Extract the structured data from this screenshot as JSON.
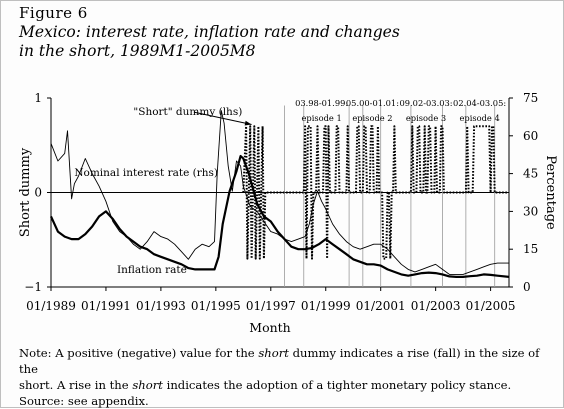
{
  "figure": {
    "label": "Figure 6",
    "title_line1": "Mexico: interest rate, inflation rate and changes",
    "title_line2": "in the short, 1989M1-2005M8"
  },
  "note": {
    "line1_a": "Note: A positive (negative) value for the ",
    "line1_em": "short",
    "line1_b": " dummy indicates a rise (fall) in the size of the",
    "line2_a": "short. A rise in the ",
    "line2_em": "short",
    "line2_b": " indicates the adoption of a tighter monetary policy stance.",
    "line3": "Source: see appendix."
  },
  "chart_data": {
    "type": "line",
    "title": "",
    "xlabel": "Month",
    "ylabel_left": "Short dummy",
    "ylabel_right": "Percentage",
    "x_range": [
      1989.0,
      2005.67
    ],
    "ylim_left": [
      -1,
      1
    ],
    "ylim_right": [
      0,
      75
    ],
    "x_ticks": [
      {
        "x": 1989.0,
        "label": "01/1989"
      },
      {
        "x": 1991.0,
        "label": "01/1991"
      },
      {
        "x": 1993.0,
        "label": "01/1993"
      },
      {
        "x": 1995.0,
        "label": "01/1995"
      },
      {
        "x": 1997.0,
        "label": "01/1997"
      },
      {
        "x": 1999.0,
        "label": "01/1999"
      },
      {
        "x": 2001.0,
        "label": "01/2001"
      },
      {
        "x": 2003.0,
        "label": "01/2003"
      },
      {
        "x": 2005.0,
        "label": "01/2005"
      }
    ],
    "y_ticks_left": [
      {
        "y": 1,
        "label": "1"
      },
      {
        "y": 0,
        "label": "0"
      },
      {
        "y": -1,
        "label": "−1"
      }
    ],
    "y_ticks_right": [
      {
        "y": 75,
        "label": "75"
      },
      {
        "y": 60,
        "label": "60"
      },
      {
        "y": 45,
        "label": "45"
      },
      {
        "y": 30,
        "label": "30"
      },
      {
        "y": 15,
        "label": "15"
      },
      {
        "y": 0,
        "label": "0"
      }
    ],
    "series": [
      {
        "name": "Nominal interest rate (rhs)",
        "label": "Nominal interest rate (rhs)",
        "axis": "right",
        "style": "thin",
        "color": "#000000",
        "points": [
          [
            1989.0,
            57
          ],
          [
            1989.25,
            50
          ],
          [
            1989.5,
            53
          ],
          [
            1989.6,
            62
          ],
          [
            1989.75,
            35
          ],
          [
            1989.85,
            41
          ],
          [
            1990.0,
            44
          ],
          [
            1990.25,
            51
          ],
          [
            1990.5,
            45
          ],
          [
            1990.75,
            40
          ],
          [
            1991.0,
            34
          ],
          [
            1991.25,
            26
          ],
          [
            1991.5,
            22
          ],
          [
            1991.75,
            20
          ],
          [
            1992.0,
            17
          ],
          [
            1992.25,
            15
          ],
          [
            1992.5,
            18
          ],
          [
            1992.75,
            22
          ],
          [
            1993.0,
            20
          ],
          [
            1993.25,
            19
          ],
          [
            1993.5,
            17
          ],
          [
            1993.75,
            14
          ],
          [
            1994.0,
            11
          ],
          [
            1994.25,
            15
          ],
          [
            1994.5,
            17
          ],
          [
            1994.75,
            16
          ],
          [
            1994.95,
            18
          ],
          [
            1995.05,
            45
          ],
          [
            1995.2,
            70
          ],
          [
            1995.3,
            65
          ],
          [
            1995.45,
            48
          ],
          [
            1995.6,
            38
          ],
          [
            1995.75,
            50
          ],
          [
            1995.9,
            48
          ],
          [
            1996.0,
            40
          ],
          [
            1996.25,
            32
          ],
          [
            1996.5,
            30
          ],
          [
            1996.75,
            26
          ],
          [
            1997.0,
            22
          ],
          [
            1997.25,
            21
          ],
          [
            1997.5,
            19
          ],
          [
            1997.75,
            18
          ],
          [
            1998.0,
            19
          ],
          [
            1998.25,
            20
          ],
          [
            1998.4,
            25
          ],
          [
            1998.55,
            33
          ],
          [
            1998.7,
            38
          ],
          [
            1998.85,
            34
          ],
          [
            1999.0,
            31
          ],
          [
            1999.25,
            25
          ],
          [
            1999.5,
            21
          ],
          [
            1999.75,
            18
          ],
          [
            2000.0,
            16
          ],
          [
            2000.25,
            15
          ],
          [
            2000.5,
            16
          ],
          [
            2000.75,
            17
          ],
          [
            2001.0,
            17
          ],
          [
            2001.25,
            15
          ],
          [
            2001.5,
            12
          ],
          [
            2001.75,
            9
          ],
          [
            2002.0,
            7
          ],
          [
            2002.25,
            6
          ],
          [
            2002.5,
            7
          ],
          [
            2002.75,
            8
          ],
          [
            2003.0,
            9
          ],
          [
            2003.25,
            7
          ],
          [
            2003.5,
            5
          ],
          [
            2003.75,
            5
          ],
          [
            2004.0,
            5
          ],
          [
            2004.25,
            6
          ],
          [
            2004.5,
            7
          ],
          [
            2004.75,
            8
          ],
          [
            2005.0,
            9
          ],
          [
            2005.25,
            9.5
          ],
          [
            2005.67,
            9.5
          ]
        ]
      },
      {
        "name": "Inflation rate",
        "label": "Inflation rate",
        "axis": "right",
        "style": "thick",
        "color": "#000000",
        "points": [
          [
            1989.0,
            28
          ],
          [
            1989.25,
            22
          ],
          [
            1989.5,
            20
          ],
          [
            1989.75,
            19
          ],
          [
            1990.0,
            19
          ],
          [
            1990.25,
            21
          ],
          [
            1990.5,
            24
          ],
          [
            1990.75,
            28
          ],
          [
            1991.0,
            30
          ],
          [
            1991.25,
            27
          ],
          [
            1991.5,
            23
          ],
          [
            1991.75,
            20
          ],
          [
            1992.0,
            18
          ],
          [
            1992.25,
            16
          ],
          [
            1992.5,
            15
          ],
          [
            1992.75,
            13
          ],
          [
            1993.0,
            12
          ],
          [
            1993.25,
            11
          ],
          [
            1993.5,
            10
          ],
          [
            1993.75,
            9
          ],
          [
            1994.0,
            7.5
          ],
          [
            1994.25,
            7
          ],
          [
            1994.5,
            7
          ],
          [
            1994.75,
            7
          ],
          [
            1994.95,
            7
          ],
          [
            1995.1,
            12
          ],
          [
            1995.25,
            25
          ],
          [
            1995.5,
            38
          ],
          [
            1995.75,
            46
          ],
          [
            1995.9,
            52
          ],
          [
            1996.0,
            51
          ],
          [
            1996.2,
            45
          ],
          [
            1996.5,
            33
          ],
          [
            1996.75,
            28
          ],
          [
            1997.0,
            26
          ],
          [
            1997.25,
            22
          ],
          [
            1997.5,
            19
          ],
          [
            1997.75,
            16
          ],
          [
            1998.0,
            15
          ],
          [
            1998.25,
            15
          ],
          [
            1998.5,
            15.5
          ],
          [
            1998.75,
            17
          ],
          [
            1999.0,
            19
          ],
          [
            1999.25,
            17
          ],
          [
            1999.5,
            15
          ],
          [
            1999.75,
            13
          ],
          [
            2000.0,
            11
          ],
          [
            2000.25,
            10
          ],
          [
            2000.5,
            9
          ],
          [
            2000.75,
            9
          ],
          [
            2001.0,
            8.5
          ],
          [
            2001.25,
            7
          ],
          [
            2001.5,
            6
          ],
          [
            2001.75,
            5
          ],
          [
            2002.0,
            4.5
          ],
          [
            2002.25,
            5
          ],
          [
            2002.5,
            5.5
          ],
          [
            2002.75,
            5.7
          ],
          [
            2003.0,
            5.5
          ],
          [
            2003.25,
            5
          ],
          [
            2003.5,
            4.2
          ],
          [
            2003.75,
            4
          ],
          [
            2004.0,
            4
          ],
          [
            2004.25,
            4.3
          ],
          [
            2004.5,
            4.5
          ],
          [
            2004.75,
            5
          ],
          [
            2005.0,
            4.8
          ],
          [
            2005.25,
            4.5
          ],
          [
            2005.67,
            4
          ]
        ]
      },
      {
        "name": "\"Short\" dummy (lhs)",
        "label": "\"Short\" dummy (lhs)",
        "axis": "left",
        "style": "dotted",
        "color": "#000000",
        "points": [
          [
            1996.0,
            0
          ],
          [
            1996.1,
            0.7
          ],
          [
            1996.15,
            -0.7
          ],
          [
            1996.25,
            0.7
          ],
          [
            1996.3,
            -0.7
          ],
          [
            1996.4,
            0.7
          ],
          [
            1996.45,
            -0.7
          ],
          [
            1996.55,
            0.7
          ],
          [
            1996.6,
            -0.7
          ],
          [
            1996.7,
            0.7
          ],
          [
            1996.75,
            -0.7
          ],
          [
            1996.8,
            0
          ],
          [
            1998.2,
            0
          ],
          [
            1998.25,
            0.7
          ],
          [
            1998.3,
            -0.7
          ],
          [
            1998.35,
            0.7
          ],
          [
            1998.45,
            0.7
          ],
          [
            1998.5,
            -0.7
          ],
          [
            1998.55,
            0
          ],
          [
            1998.65,
            0
          ],
          [
            1998.7,
            0.7
          ],
          [
            1998.75,
            0
          ],
          [
            1998.9,
            0
          ],
          [
            1998.95,
            0.7
          ],
          [
            1999.0,
            0.7
          ],
          [
            1999.05,
            -0.7
          ],
          [
            1999.1,
            0.7
          ],
          [
            1999.15,
            0
          ],
          [
            1999.35,
            0
          ],
          [
            1999.4,
            0.7
          ],
          [
            1999.45,
            0.7
          ],
          [
            1999.5,
            0
          ],
          [
            1999.75,
            0
          ],
          [
            1999.8,
            0.7
          ],
          [
            1999.85,
            0
          ],
          [
            2000.1,
            0
          ],
          [
            2000.15,
            0.7
          ],
          [
            2000.2,
            0.7
          ],
          [
            2000.25,
            0
          ],
          [
            2000.35,
            0
          ],
          [
            2000.4,
            0.7
          ],
          [
            2000.45,
            0.7
          ],
          [
            2000.5,
            0
          ],
          [
            2000.6,
            0
          ],
          [
            2000.65,
            0.7
          ],
          [
            2000.7,
            0.7
          ],
          [
            2000.75,
            0
          ],
          [
            2000.85,
            0
          ],
          [
            2000.9,
            0.7
          ],
          [
            2000.95,
            0
          ],
          [
            2001.05,
            0
          ],
          [
            2001.1,
            -0.7
          ],
          [
            2001.2,
            -0.7
          ],
          [
            2001.25,
            0
          ],
          [
            2001.3,
            0
          ],
          [
            2001.35,
            -0.7
          ],
          [
            2001.4,
            0
          ],
          [
            2001.45,
            0
          ],
          [
            2001.5,
            0.7
          ],
          [
            2001.55,
            0
          ],
          [
            2002.1,
            0
          ],
          [
            2002.15,
            0.7
          ],
          [
            2002.2,
            0
          ],
          [
            2002.3,
            0
          ],
          [
            2002.35,
            0.7
          ],
          [
            2002.4,
            0.7
          ],
          [
            2002.45,
            0
          ],
          [
            2002.55,
            0
          ],
          [
            2002.6,
            0.7
          ],
          [
            2002.65,
            0
          ],
          [
            2002.7,
            0
          ],
          [
            2002.75,
            0.7
          ],
          [
            2002.8,
            0.7
          ],
          [
            2002.85,
            0
          ],
          [
            2002.95,
            0
          ],
          [
            2003.0,
            0.7
          ],
          [
            2003.05,
            0
          ],
          [
            2003.15,
            0
          ],
          [
            2003.2,
            0.7
          ],
          [
            2003.25,
            0.7
          ],
          [
            2003.3,
            0
          ],
          [
            2004.1,
            0
          ],
          [
            2004.15,
            0.7
          ],
          [
            2004.2,
            0
          ],
          [
            2004.35,
            0
          ],
          [
            2004.4,
            0.7
          ],
          [
            2004.95,
            0.7
          ],
          [
            2005.0,
            0
          ],
          [
            2005.05,
            0.7
          ],
          [
            2005.1,
            0.7
          ],
          [
            2005.15,
            0
          ],
          [
            2005.67,
            0
          ]
        ]
      }
    ],
    "vertical_lines": [
      1997.5,
      1998.2,
      1999.85,
      2000.35,
      2001.0,
      2002.1,
      2003.25,
      2004.1,
      2005.15
    ],
    "annotations": [
      {
        "text": "03.98-01.99:",
        "x": 1998.85,
        "y_right": 73
      },
      {
        "text": "episode 1",
        "x": 1998.85,
        "y_right": 67
      },
      {
        "text": "05.00-01.01:",
        "x": 2000.7,
        "y_right": 73
      },
      {
        "text": "episode 2",
        "x": 2000.7,
        "y_right": 67
      },
      {
        "text": "09.02-03.03:",
        "x": 2002.65,
        "y_right": 73
      },
      {
        "text": "episode 3",
        "x": 2002.65,
        "y_right": 67
      },
      {
        "text": "02.04-03.05:",
        "x": 2004.6,
        "y_right": 73
      },
      {
        "text": "episode 4",
        "x": 2004.6,
        "y_right": 67
      }
    ],
    "arrow": {
      "label": "\"Short\" dummy (lhs)",
      "from_x": 1994.2,
      "from_y_left": 0.85,
      "to_x": 1996.3,
      "to_y_left": 0.72
    },
    "grid": false,
    "legend": "none"
  }
}
